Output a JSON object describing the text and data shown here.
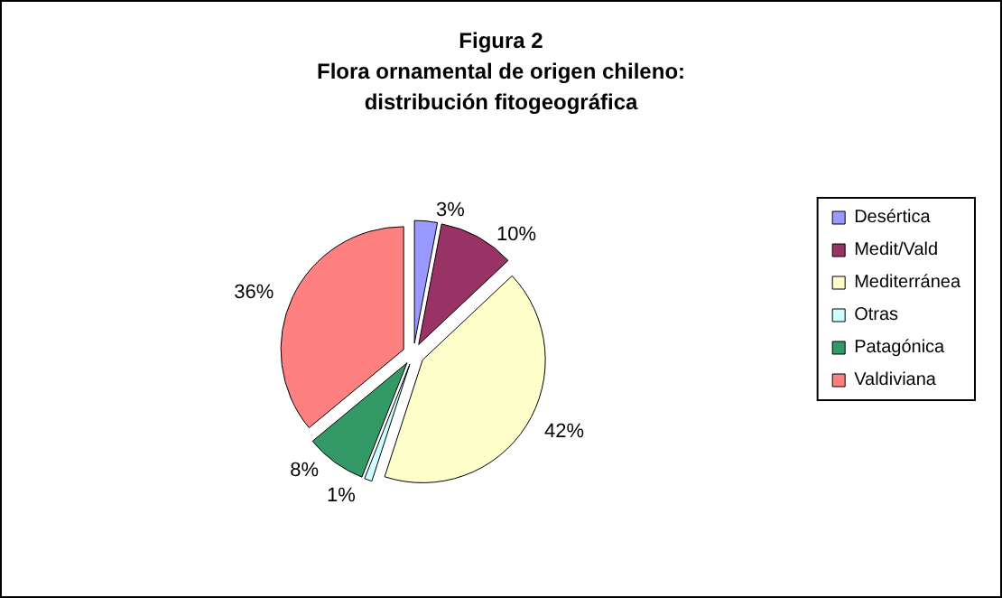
{
  "chart_data": {
    "type": "pie",
    "title": "Figura 2\nFlora ornamental de origen chileno:\ndistribución fitogeográfica",
    "categories": [
      "Desértica",
      "Medit/Vald",
      "Mediterránea",
      "Otras",
      "Patagónica",
      "Valdiviana"
    ],
    "values": [
      3,
      10,
      42,
      1,
      8,
      36
    ],
    "colors": [
      "#9999ff",
      "#993366",
      "#ffffcc",
      "#ccffff",
      "#339966",
      "#ff8080"
    ],
    "value_labels": [
      "3%",
      "10%",
      "42%",
      "1%",
      "8%",
      "36%"
    ],
    "legend": "right"
  }
}
